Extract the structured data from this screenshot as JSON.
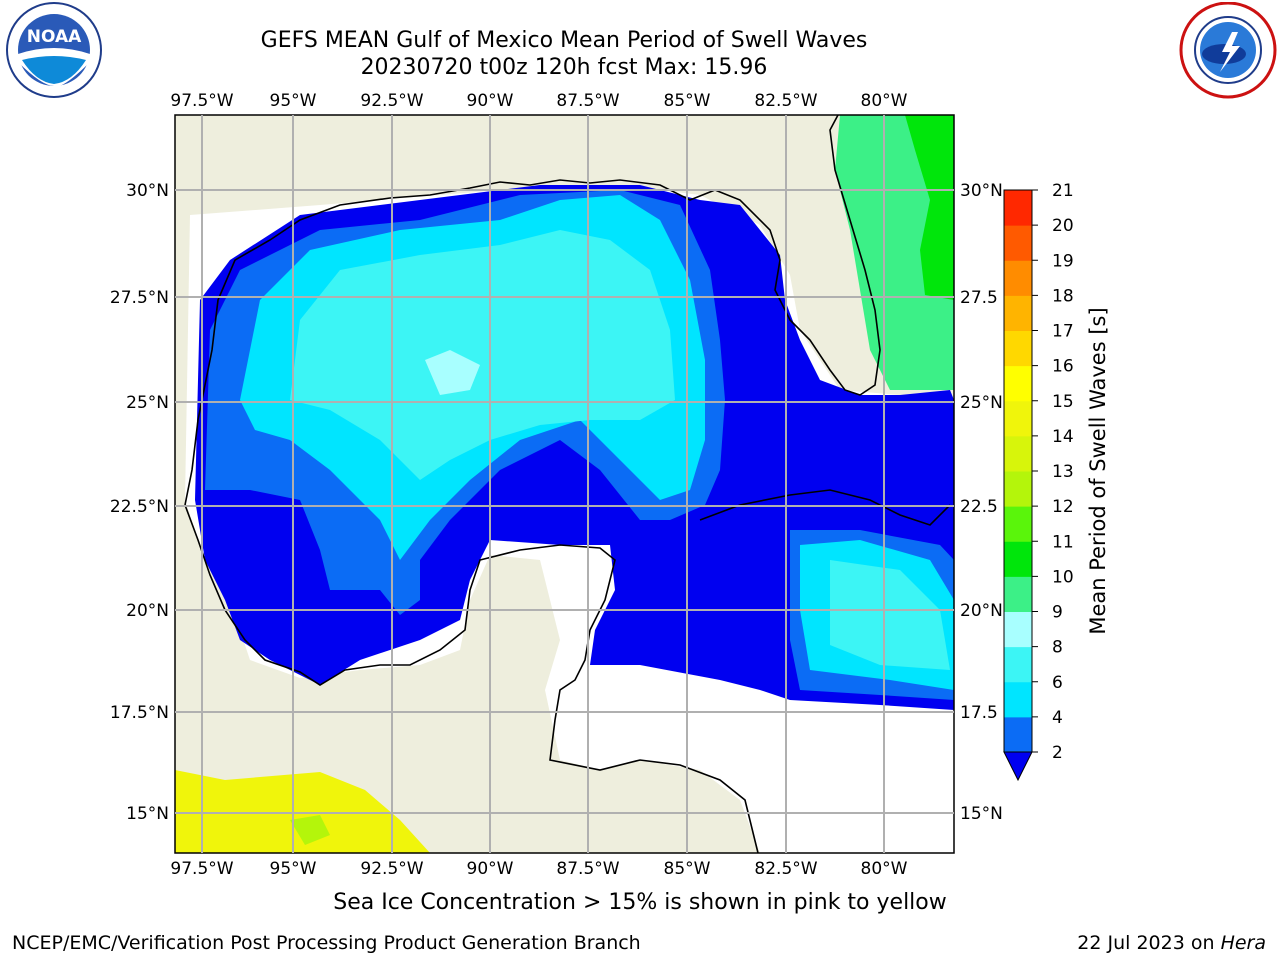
{
  "header": {
    "title": "GEFS MEAN Gulf of Mexico Mean Period of Swell Waves",
    "subtitle": "20230720 t00z 120h fcst   Max: 15.96"
  },
  "logos": {
    "left": {
      "icon": "noaa-logo",
      "text": "NOAA"
    },
    "right": {
      "icon": "nws-logo"
    }
  },
  "map": {
    "lon_labels": [
      "97.5°W",
      "95°W",
      "92.5°W",
      "90°W",
      "87.5°W",
      "85°W",
      "82.5°W",
      "80°W"
    ],
    "lat_labels": [
      "30°N",
      "27.5°N",
      "25°N",
      "22.5°N",
      "20°N",
      "17.5°N",
      "15°N"
    ],
    "lat_labels_right": [
      "30°N",
      "27.5",
      "25°N",
      "22.5",
      "20°N",
      "17.5",
      "15°N"
    ],
    "colors": {
      "land": "#eeeedd",
      "ocean_missing": "#ffffff",
      "grid": "#b0b0b0"
    }
  },
  "colorbar": {
    "label": "Mean Period of Swell Waves [s]",
    "ticks": [
      "2",
      "4",
      "6",
      "8",
      "9",
      "10",
      "11",
      "12",
      "13",
      "14",
      "15",
      "16",
      "17",
      "18",
      "19",
      "20",
      "21"
    ],
    "colors": [
      "#0b6cf5",
      "#00e5ff",
      "#3cf5f5",
      "#a8ffff",
      "#3cf087",
      "#00e60b",
      "#5af50b",
      "#b4f50b",
      "#d7f50b",
      "#f0f50b",
      "#ffff00",
      "#ffd800",
      "#ffb400",
      "#ff8c00",
      "#ff5a00",
      "#ff2800"
    ],
    "under_color": "#0000f0"
  },
  "caption": "Sea Ice Concentration > 15% is shown in pink to yellow",
  "footer": {
    "left": "NCEP/EMC/Verification Post Processing Product Generation Branch",
    "date": "22 Jul 2023 on ",
    "machine": "Hera"
  }
}
